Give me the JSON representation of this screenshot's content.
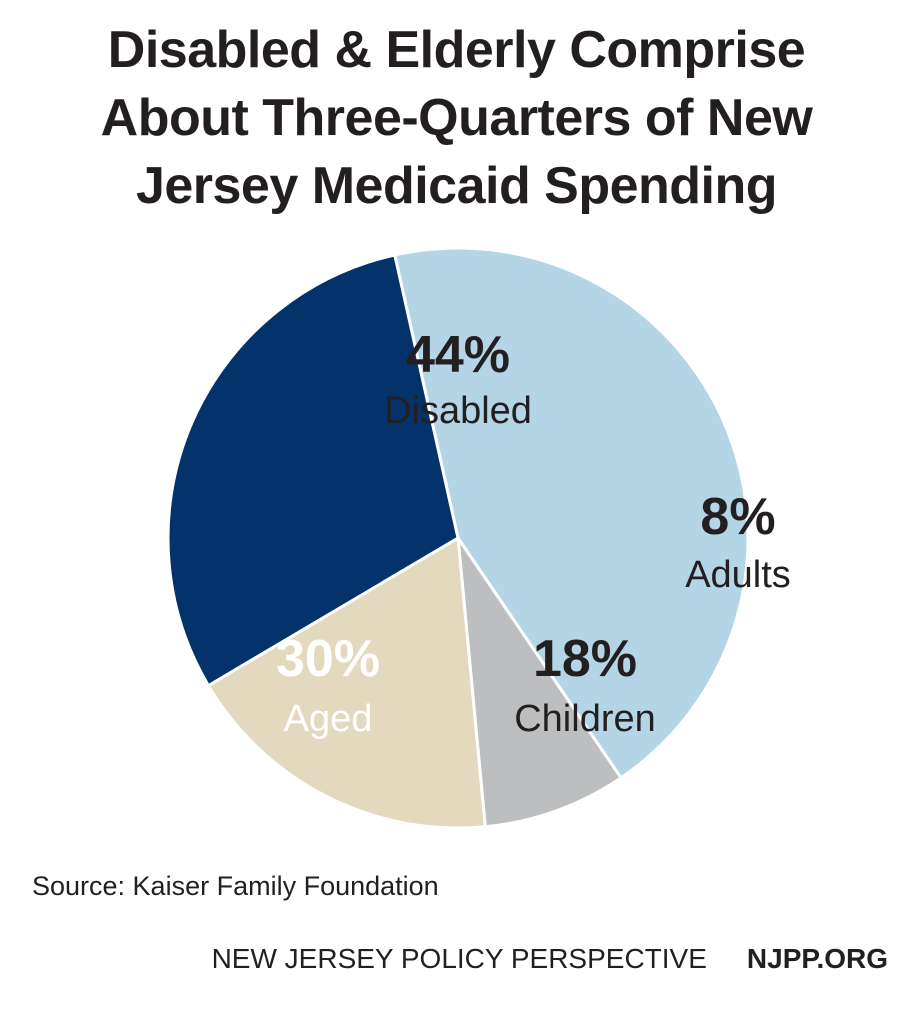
{
  "header": {
    "title_lines": [
      "Disabled & Elderly Comprise",
      "About Three-Quarters of New",
      "Jersey Medicaid Spending"
    ]
  },
  "chart_data": {
    "type": "pie",
    "title": "Disabled & Elderly Comprise About Three-Quarters of New Jersey Medicaid Spending",
    "slices": [
      {
        "label": "Disabled",
        "value": 44,
        "value_label": "44%",
        "color": "#b3d5e6",
        "text_color": "#231f20"
      },
      {
        "label": "Adults",
        "value": 8,
        "value_label": "8%",
        "color": "#bcbec0",
        "text_color": "#231f20"
      },
      {
        "label": "Children",
        "value": 18,
        "value_label": "18%",
        "color": "#e3d9bf",
        "text_color": "#231f20"
      },
      {
        "label": "Aged",
        "value": 30,
        "value_label": "30%",
        "color": "#03336a",
        "text_color": "#ffffff"
      }
    ],
    "slice_border_color": "#ffffff"
  },
  "footer": {
    "source": "Source: Kaiser Family Foundation",
    "organization": "NEW JERSEY POLICY PERSPECTIVE",
    "website": "NJPP.ORG"
  }
}
